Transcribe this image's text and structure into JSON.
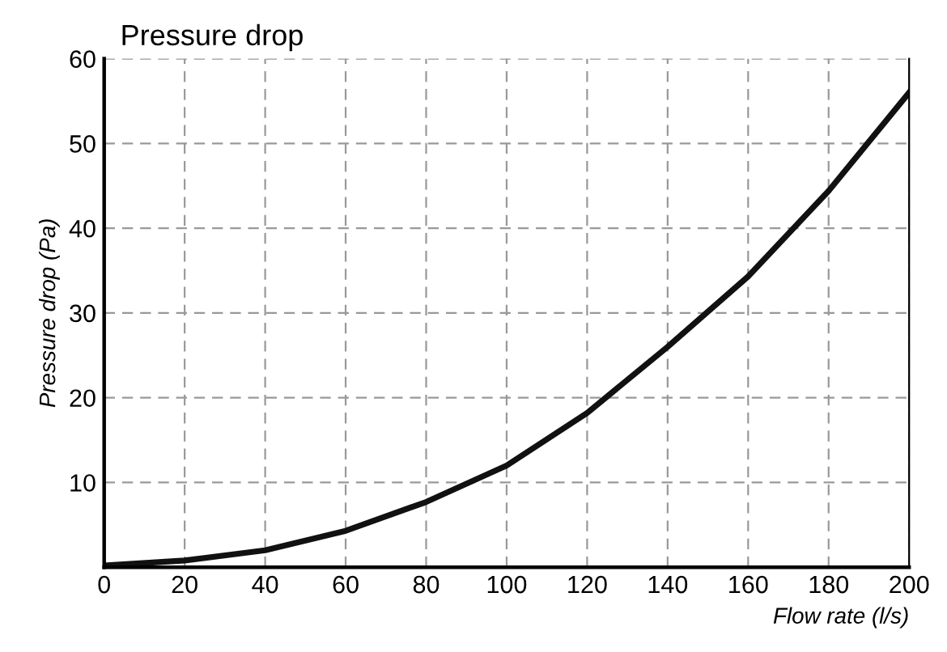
{
  "chart_data": {
    "type": "line",
    "title": "Pressure drop",
    "xlabel": "Flow rate (l/s)",
    "ylabel": "Pressure drop (Pa)",
    "x": [
      0,
      20,
      40,
      60,
      80,
      100,
      120,
      140,
      160,
      180,
      200
    ],
    "series": [
      {
        "color": "#111111",
        "values": [
          0.2,
          0.8,
          2,
          4.3,
          7.7,
          12,
          18.2,
          26,
          34.3,
          44.4,
          56
        ]
      }
    ],
    "xlim": [
      0,
      200
    ],
    "ylim": [
      0,
      60
    ],
    "xticks": [
      0,
      20,
      40,
      60,
      80,
      100,
      120,
      140,
      160,
      180,
      200
    ],
    "yticks": [
      10,
      20,
      30,
      40,
      50,
      60
    ],
    "grid": true,
    "line_style": "solid",
    "marker": "none",
    "legend": false
  }
}
